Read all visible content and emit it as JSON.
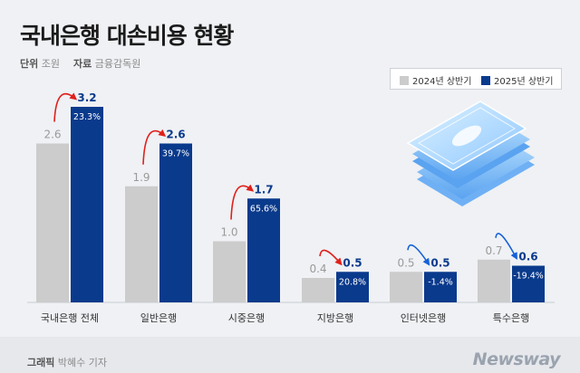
{
  "title": "국내은행 대손비용 현황",
  "meta": {
    "unit_label": "단위",
    "unit_value": "조원",
    "source_label": "자료",
    "source_value": "금융감독원"
  },
  "legend": {
    "s1": "2024년 상반기",
    "s2": "2025년 상반기"
  },
  "colors": {
    "s1": "#cccccc",
    "s2": "#0a3a8c",
    "arrow_up": "#e0201b",
    "arrow_down": "#1560d8"
  },
  "chart_data": {
    "type": "bar",
    "categories": [
      "국내은행 전체",
      "일반은행",
      "시중은행",
      "지방은행",
      "인터넷은행",
      "특수은행"
    ],
    "series": [
      {
        "name": "2024년 상반기",
        "values": [
          2.6,
          1.9,
          1.0,
          0.4,
          0.5,
          0.7
        ]
      },
      {
        "name": "2025년 상반기",
        "values": [
          3.2,
          2.6,
          1.7,
          0.5,
          0.5,
          0.6
        ]
      }
    ],
    "change_labels": [
      "23.3%",
      "39.7%",
      "65.6%",
      "20.8%",
      "-1.4%",
      "-19.4%"
    ],
    "change_direction": [
      "up",
      "up",
      "up",
      "up",
      "down",
      "down"
    ],
    "ylim": [
      0,
      3.2
    ],
    "grid": false,
    "legend_position": "top-right"
  },
  "footer": {
    "credit_label": "그래픽",
    "credit_name": "박혜수 기자",
    "brand": "Newsway"
  }
}
